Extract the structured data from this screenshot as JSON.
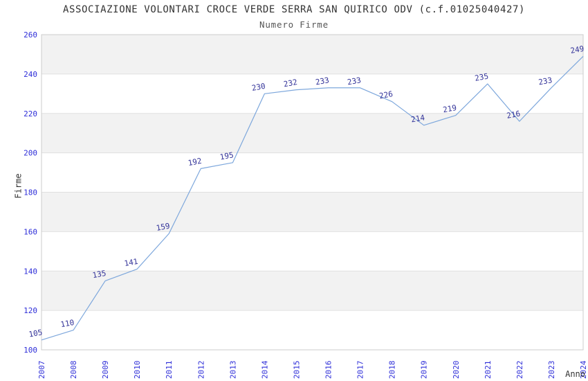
{
  "title": "ASSOCIAZIONE VOLONTARI CROCE VERDE SERRA SAN QUIRICO ODV (c.f.01025040427)",
  "subtitle": "Numero Firme",
  "chart_data": {
    "type": "line",
    "title": "ASSOCIAZIONE VOLONTARI CROCE VERDE SERRA SAN QUIRICO ODV (c.f.01025040427)",
    "subtitle": "Numero Firme",
    "xlabel": "Anno",
    "ylabel": "Firme",
    "categories": [
      "2007",
      "2008",
      "2009",
      "2010",
      "2011",
      "2012",
      "2013",
      "2014",
      "2015",
      "2016",
      "2017",
      "2018",
      "2019",
      "2020",
      "2021",
      "2022",
      "2023",
      "2024"
    ],
    "values": [
      105,
      110,
      135,
      141,
      159,
      192,
      195,
      230,
      232,
      233,
      233,
      226,
      214,
      219,
      235,
      216,
      233,
      249
    ],
    "series": [
      {
        "name": "Numero Firme",
        "values": [
          105,
          110,
          135,
          141,
          159,
          192,
          195,
          230,
          232,
          233,
          233,
          226,
          214,
          219,
          235,
          216,
          233,
          249
        ]
      }
    ],
    "ylim": [
      100,
      260
    ],
    "yticks": [
      100,
      120,
      140,
      160,
      180,
      200,
      220,
      240,
      260
    ],
    "grid": "horizontal, alternating shaded bands",
    "legend": "none",
    "point_labels": "shown above each point, rotated slightly",
    "colors": {
      "line": "#7da7dc",
      "data_label": "#333399",
      "tick_label": "#2d2dd8",
      "band": "#f2f2f2",
      "grid": "#e0e0e0",
      "border": "#cccccc",
      "title": "#333333",
      "subtitle": "#555555",
      "axis_title": "#333333",
      "background": "#ffffff"
    }
  }
}
